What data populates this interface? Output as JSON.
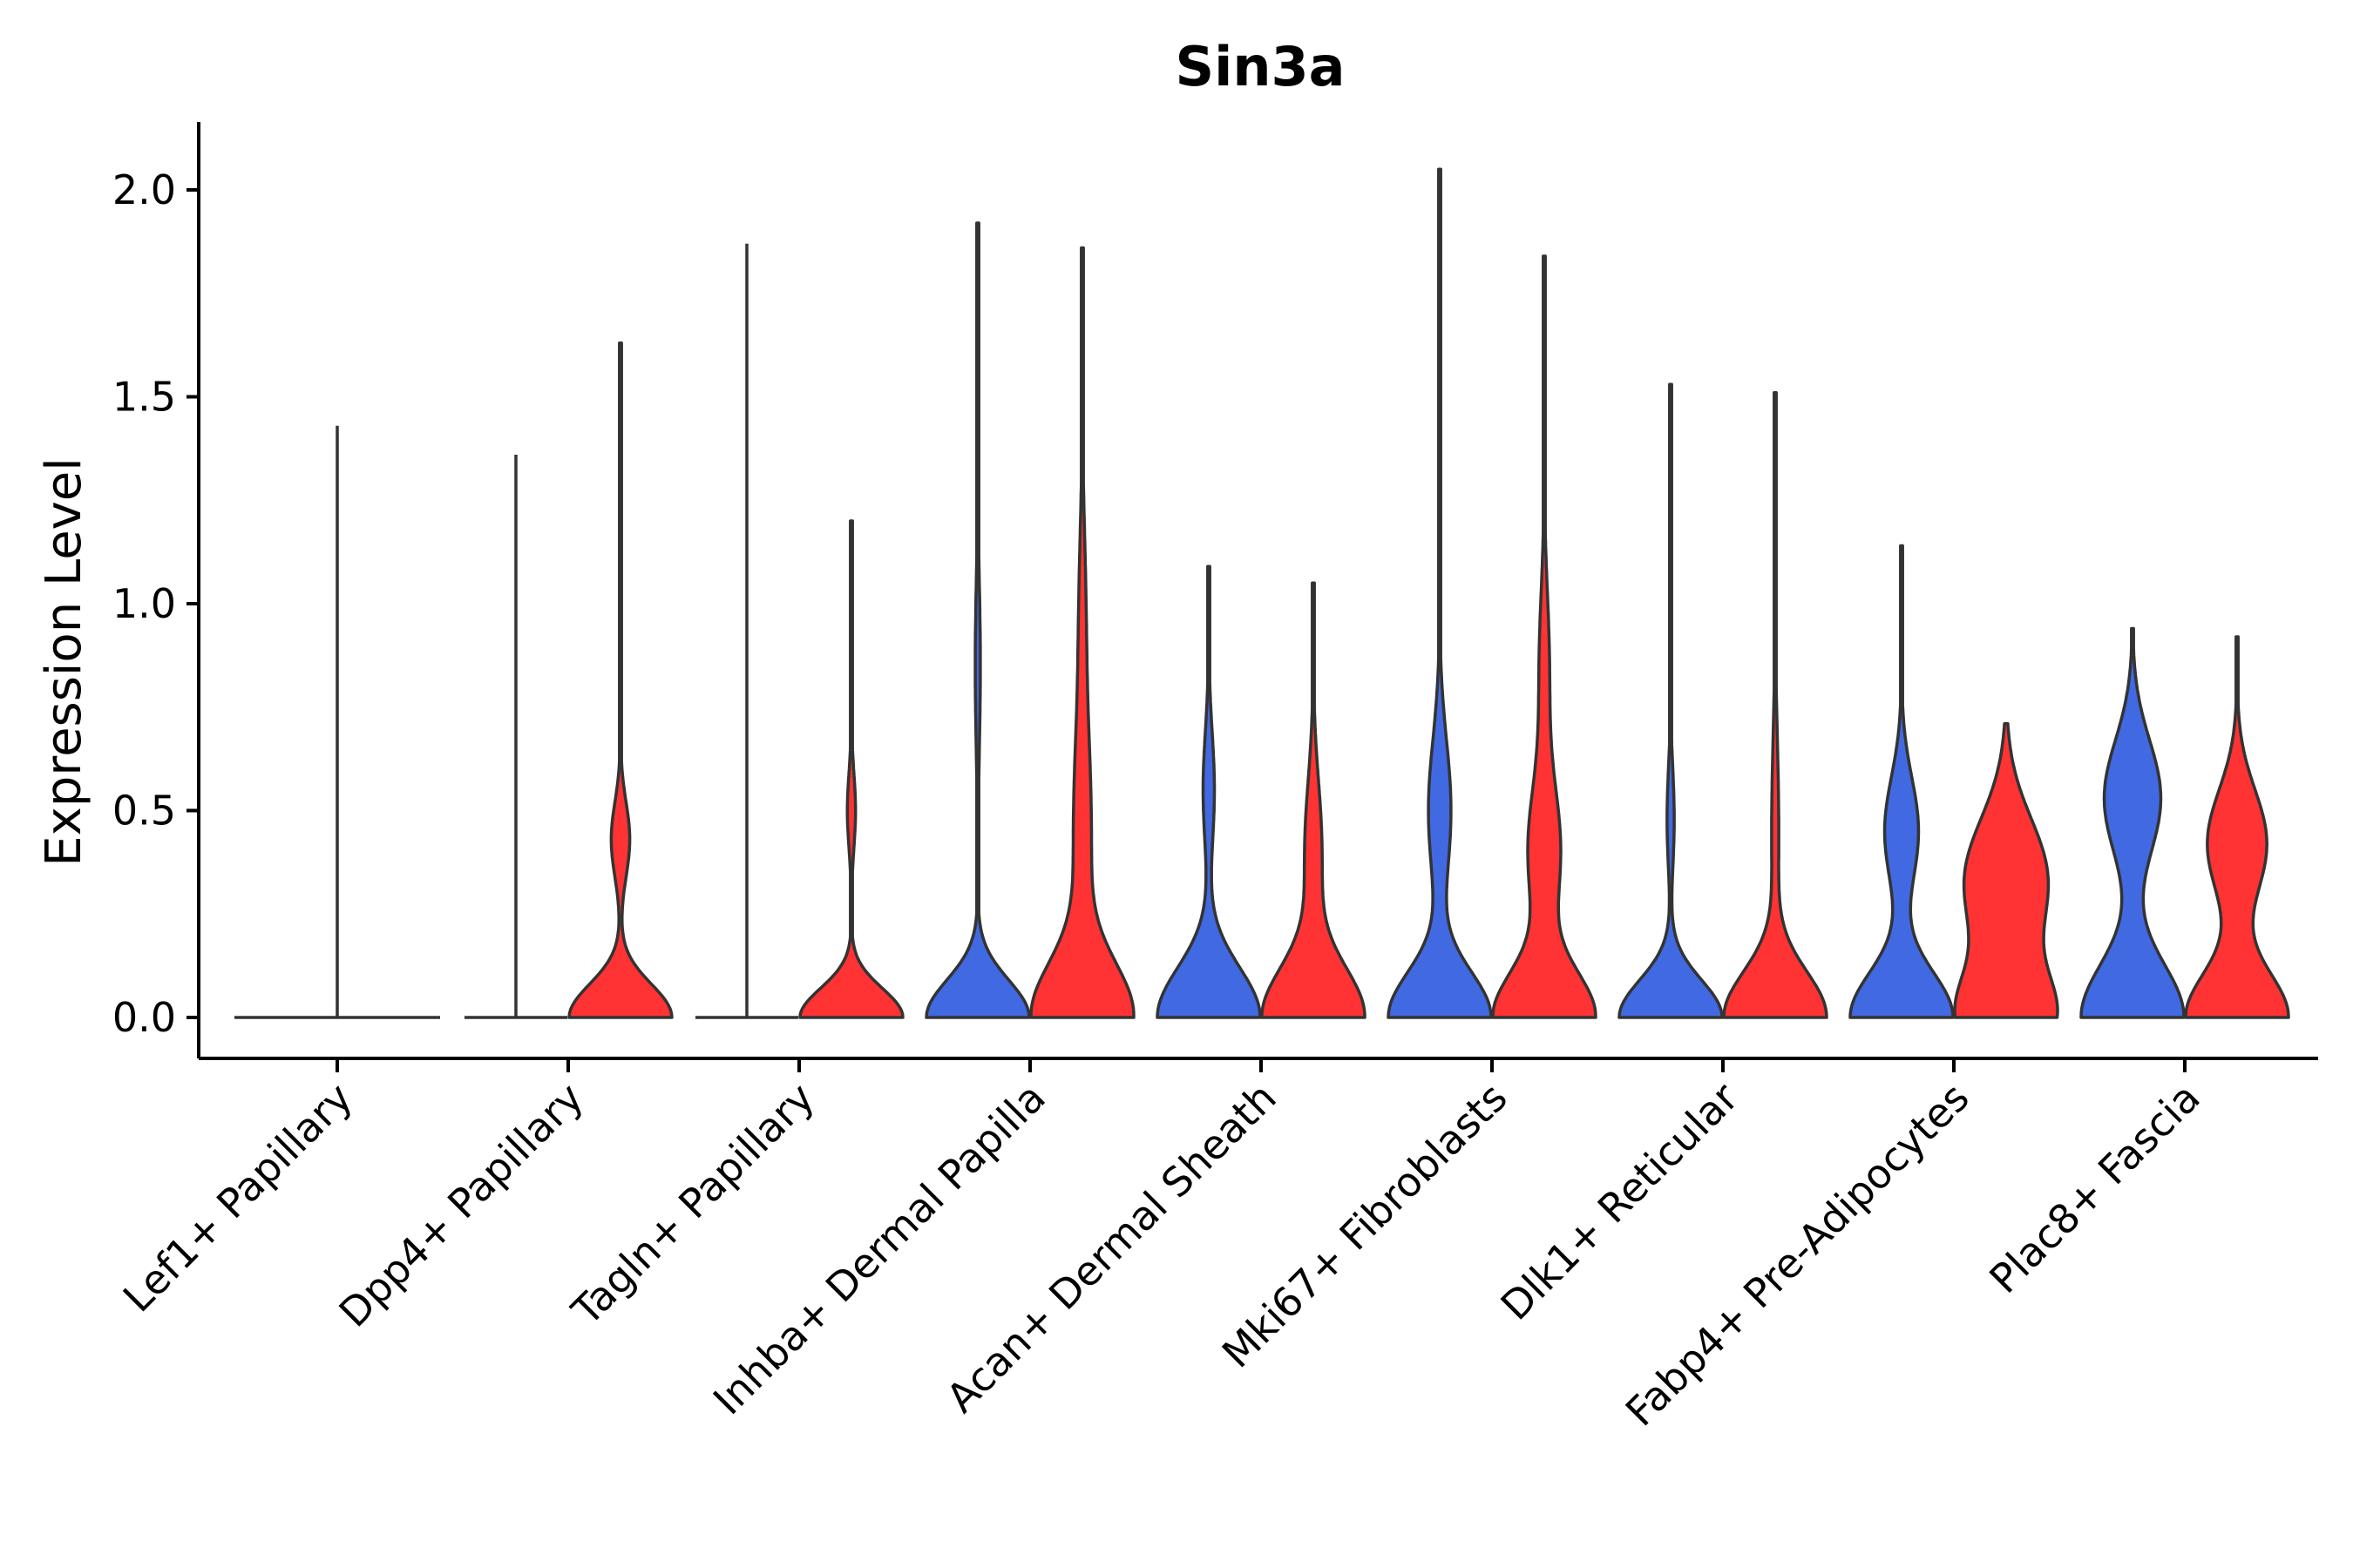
{
  "chart_data": {
    "type": "violin",
    "title": "Sin3a",
    "xlabel": "",
    "ylabel": "Expression Level",
    "ylim": [
      -0.1,
      2.15
    ],
    "yticks": [
      "0.0",
      "0.5",
      "1.0",
      "1.5",
      "2.0"
    ],
    "ytick_values": [
      0,
      0.5,
      1.0,
      1.5,
      2.0
    ],
    "colors": {
      "group_a": "#4169E1",
      "group_b": "#FF3333",
      "outline": "#333333"
    },
    "categories": [
      {
        "label": "Lef1+ Papillary",
        "group": "a",
        "max": 1.43,
        "maxWidth": 1.0,
        "modes": [
          [
            0.0,
            0.02,
            1.0
          ]
        ]
      },
      {
        "label": "Dpp4+ Papillary",
        "group": "a",
        "max": 1.36,
        "maxWidth": 1.0,
        "modes": [
          [
            0.0,
            0.02,
            1.0
          ]
        ]
      },
      {
        "label": "Dpp4+ Papillary",
        "group": "b",
        "max": 1.63,
        "maxWidth": 1.0,
        "modes": [
          [
            0.0,
            0.08,
            1.0
          ],
          [
            0.43,
            0.09,
            0.18
          ]
        ]
      },
      {
        "label": "Tagln+ Papillary",
        "group": "a",
        "max": 1.87,
        "maxWidth": 1.0,
        "modes": [
          [
            0.0,
            0.02,
            1.0
          ]
        ]
      },
      {
        "label": "Tagln+ Papillary",
        "group": "b",
        "max": 1.2,
        "maxWidth": 1.0,
        "modes": [
          [
            0.0,
            0.07,
            1.0
          ],
          [
            0.5,
            0.09,
            0.08
          ]
        ]
      },
      {
        "label": "Inhba+ Dermal Papilla",
        "group": "a",
        "max": 1.92,
        "maxWidth": 1.0,
        "modes": [
          [
            0.0,
            0.09,
            1.0
          ],
          [
            0.85,
            0.2,
            0.05
          ]
        ]
      },
      {
        "label": "Inhba+ Dermal Papilla",
        "group": "b",
        "max": 1.86,
        "maxWidth": 1.0,
        "modes": [
          [
            0.0,
            0.13,
            1.0
          ],
          [
            0.45,
            0.25,
            0.18
          ],
          [
            1.0,
            0.2,
            0.06
          ]
        ]
      },
      {
        "label": "Acan+ Dermal Sheath",
        "group": "a",
        "max": 1.09,
        "maxWidth": 1.0,
        "modes": [
          [
            0.0,
            0.12,
            1.0
          ],
          [
            0.55,
            0.14,
            0.11
          ]
        ]
      },
      {
        "label": "Acan+ Dermal Sheath",
        "group": "b",
        "max": 1.05,
        "maxWidth": 1.0,
        "modes": [
          [
            0.0,
            0.12,
            1.0
          ],
          [
            0.4,
            0.17,
            0.17
          ]
        ]
      },
      {
        "label": "Mki67+ Fibroblasts",
        "group": "a",
        "max": 2.05,
        "maxWidth": 1.0,
        "modes": [
          [
            0.0,
            0.11,
            1.0
          ],
          [
            0.5,
            0.17,
            0.22
          ]
        ]
      },
      {
        "label": "Mki67+ Fibroblasts",
        "group": "b",
        "max": 1.84,
        "maxWidth": 1.0,
        "modes": [
          [
            0.0,
            0.11,
            1.0
          ],
          [
            0.4,
            0.16,
            0.32
          ],
          [
            0.85,
            0.18,
            0.1
          ]
        ]
      },
      {
        "label": "Dlk1+ Reticular",
        "group": "a",
        "max": 1.53,
        "maxWidth": 1.0,
        "modes": [
          [
            0.0,
            0.09,
            1.0
          ],
          [
            0.48,
            0.12,
            0.07
          ]
        ]
      },
      {
        "label": "Dlk1+ Reticular",
        "group": "b",
        "max": 1.51,
        "maxWidth": 1.0,
        "modes": [
          [
            0.0,
            0.11,
            1.0
          ],
          [
            0.45,
            0.22,
            0.07
          ]
        ]
      },
      {
        "label": "Fabp4+ Pre-Adipocytes",
        "group": "a",
        "max": 1.14,
        "maxWidth": 1.0,
        "modes": [
          [
            0.0,
            0.11,
            1.0
          ],
          [
            0.45,
            0.13,
            0.33
          ]
        ]
      },
      {
        "label": "Fabp4+ Pre-Adipocytes",
        "group": "b",
        "max": 0.71,
        "maxWidth": 1.0,
        "modes": [
          [
            0.0,
            0.11,
            1.0
          ],
          [
            0.33,
            0.15,
            0.88
          ]
        ]
      },
      {
        "label": "Plac8+ Fascia",
        "group": "a",
        "max": 0.94,
        "maxWidth": 1.0,
        "modes": [
          [
            0.0,
            0.13,
            1.0
          ],
          [
            0.53,
            0.14,
            0.55
          ]
        ]
      },
      {
        "label": "Plac8+ Fascia",
        "group": "b",
        "max": 0.92,
        "maxWidth": 1.0,
        "modes": [
          [
            0.0,
            0.11,
            1.0
          ],
          [
            0.42,
            0.13,
            0.58
          ]
        ]
      }
    ],
    "x_tick_labels": [
      "Lef1+ Papillary",
      "Dpp4+ Papillary",
      "Tagln+ Papillary",
      "Inhba+ Dermal Papilla",
      "Acan+ Dermal Sheath",
      "Mki67+ Fibroblasts",
      "Dlk1+ Reticular",
      "Fabp4+ Pre-Adipocytes",
      "Plac8+ Fascia"
    ],
    "grid": false,
    "legend": "none"
  }
}
